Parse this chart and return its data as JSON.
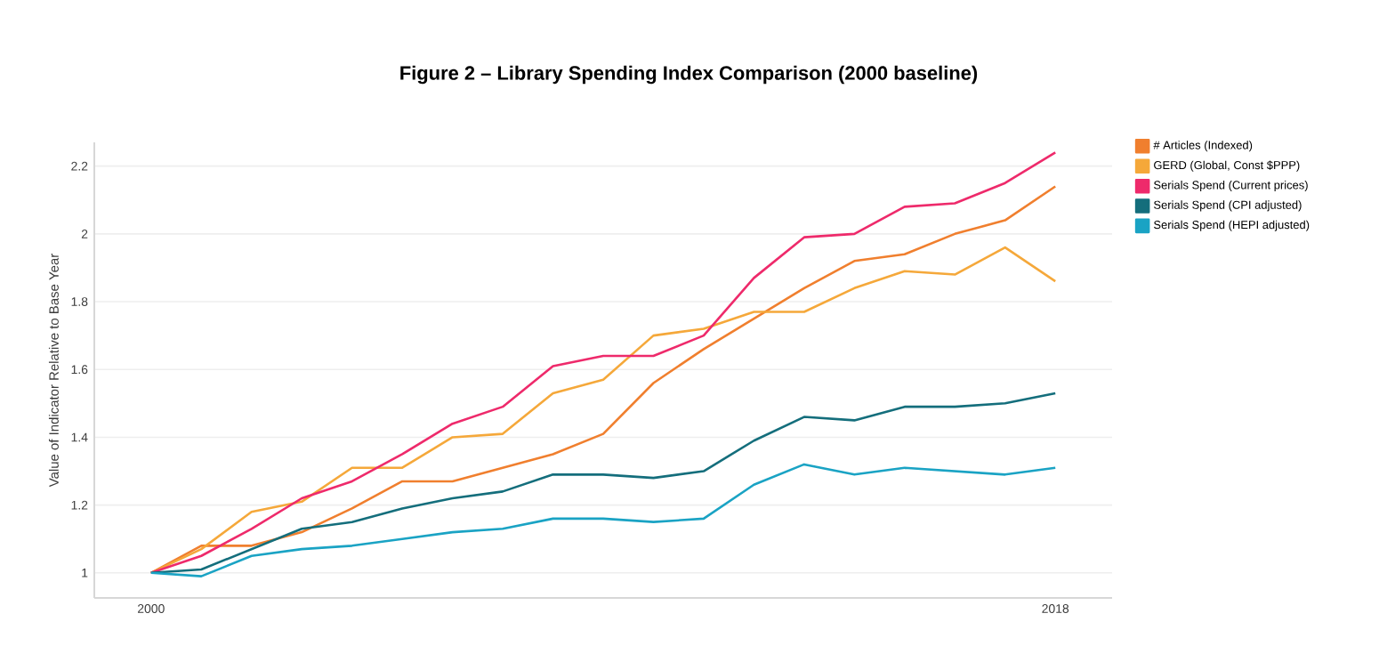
{
  "chart_data": {
    "type": "line",
    "title": "Figure 2 – Library Spending Index Comparison (2000 baseline)",
    "ylabel": "Value of Indicator Relative to Base Year",
    "x": [
      2000,
      2001,
      2002,
      2003,
      2004,
      2005,
      2006,
      2007,
      2008,
      2009,
      2010,
      2011,
      2012,
      2013,
      2014,
      2015,
      2016,
      2017,
      2018
    ],
    "series": [
      {
        "name": "# Articles (Indexed)",
        "color": "#f07f2e",
        "values": [
          1.0,
          1.08,
          1.08,
          1.12,
          1.19,
          1.27,
          1.27,
          1.31,
          1.35,
          1.41,
          1.56,
          1.66,
          1.75,
          1.84,
          1.92,
          1.94,
          2.0,
          2.04,
          2.14
        ]
      },
      {
        "name": "GERD (Global, Const $PPP)",
        "color": "#f5a83a",
        "values": [
          1.0,
          1.07,
          1.18,
          1.21,
          1.31,
          1.31,
          1.4,
          1.41,
          1.53,
          1.57,
          1.7,
          1.72,
          1.77,
          1.77,
          1.84,
          1.89,
          1.88,
          1.96,
          1.86
        ]
      },
      {
        "name": "Serials Spend (Current prices)",
        "color": "#ee2a6b",
        "values": [
          1.0,
          1.05,
          1.13,
          1.22,
          1.27,
          1.35,
          1.44,
          1.49,
          1.61,
          1.64,
          1.64,
          1.7,
          1.87,
          1.99,
          2.0,
          2.08,
          2.09,
          2.15,
          2.24
        ]
      },
      {
        "name": "Serials Spend (CPI adjusted)",
        "color": "#146e7c",
        "values": [
          1.0,
          1.01,
          1.07,
          1.13,
          1.15,
          1.19,
          1.22,
          1.24,
          1.29,
          1.29,
          1.28,
          1.3,
          1.39,
          1.46,
          1.45,
          1.49,
          1.49,
          1.5,
          1.53
        ]
      },
      {
        "name": "Serials Spend (HEPI adjusted)",
        "color": "#1aa3c4",
        "values": [
          1.0,
          0.99,
          1.05,
          1.07,
          1.08,
          1.1,
          1.12,
          1.13,
          1.16,
          1.16,
          1.15,
          1.16,
          1.26,
          1.32,
          1.29,
          1.31,
          1.3,
          1.29,
          1.31
        ]
      }
    ],
    "xlim": [
      1998.87,
      2019.13
    ],
    "xticks": [
      2000,
      2018
    ],
    "ylim": [
      0.926,
      2.27
    ],
    "yticks": [
      1,
      1.2,
      1.4,
      1.6,
      1.8,
      2,
      2.2
    ],
    "grid": "y",
    "legend": "top right",
    "marker": "none",
    "line_style": "solid"
  }
}
